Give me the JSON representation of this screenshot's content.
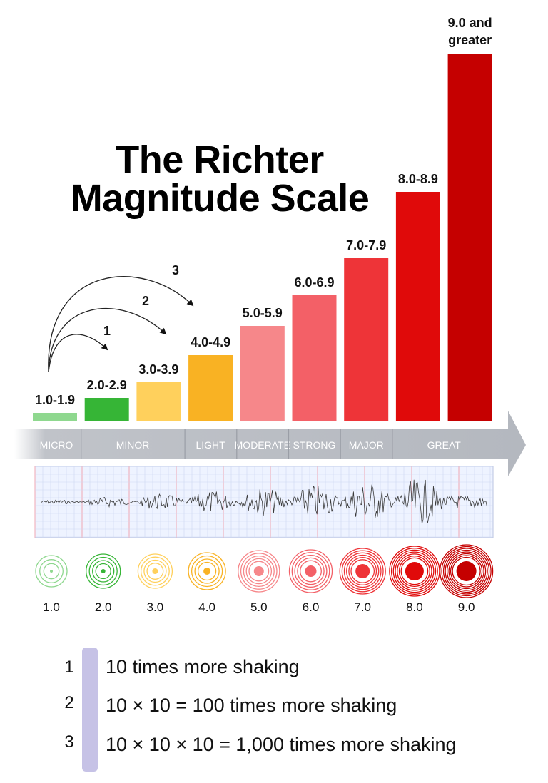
{
  "title": {
    "line1": "The Richter",
    "line2": "Magnitude Scale"
  },
  "chart_data": {
    "type": "bar",
    "title": "The Richter Magnitude Scale",
    "categories": [
      "1.0-1.9",
      "2.0-2.9",
      "3.0-3.9",
      "4.0-4.9",
      "5.0-5.9",
      "6.0-6.9",
      "7.0-7.9",
      "8.0-8.9",
      "9.0 and greater"
    ],
    "values": [
      1,
      2,
      3,
      4,
      5,
      6,
      7,
      8,
      9
    ],
    "colors": [
      "#8fd88f",
      "#36b536",
      "#ffd05c",
      "#f9b223",
      "#f6878a",
      "#f36067",
      "#ee3438",
      "#e00a0a",
      "#c50000"
    ],
    "classes": [
      {
        "label": "MICRO",
        "from": 1,
        "to": 1
      },
      {
        "label": "MINOR",
        "from": 2,
        "to": 3
      },
      {
        "label": "LIGHT",
        "from": 4,
        "to": 4
      },
      {
        "label": "MODERATE",
        "from": 5,
        "to": 5
      },
      {
        "label": "STRONG",
        "from": 6,
        "to": 6
      },
      {
        "label": "MAJOR",
        "from": 7,
        "to": 7
      },
      {
        "label": "GREAT",
        "from": 8,
        "to": 9
      }
    ],
    "magnitudes": [
      "1.0",
      "2.0",
      "3.0",
      "4.0",
      "5.0",
      "6.0",
      "7.0",
      "8.0",
      "9.0"
    ],
    "jump_labels": [
      "1",
      "2",
      "3"
    ]
  },
  "legend": [
    {
      "num": "1",
      "text": "10 times more shaking"
    },
    {
      "num": "2",
      "text": "10 × 10 = 100 times more shaking"
    },
    {
      "num": "3",
      "text": "10 × 10 × 10 = 1,000 times more shaking"
    }
  ]
}
